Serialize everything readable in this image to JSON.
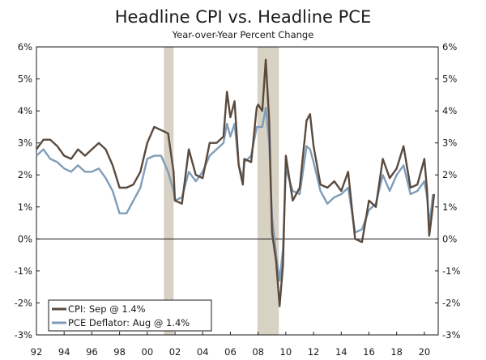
{
  "chart_data": {
    "type": "line",
    "title": "Headline CPI vs. Headline PCE",
    "subtitle": "Year-over-Year Percent Change",
    "xlim": [
      1992,
      2021
    ],
    "ylim": [
      -3,
      6
    ],
    "y_ticks": [
      6,
      5,
      4,
      3,
      2,
      1,
      0,
      -1,
      -2,
      -3
    ],
    "y_tick_labels": [
      "6%",
      "5%",
      "4%",
      "3%",
      "2%",
      "1%",
      "0%",
      "-1%",
      "-2%",
      "-3%"
    ],
    "x_ticks": [
      1992,
      1994,
      1996,
      1998,
      2000,
      2002,
      2004,
      2006,
      2008,
      2010,
      2012,
      2014,
      2016,
      2018,
      2020
    ],
    "x_tick_labels": [
      "92",
      "94",
      "96",
      "98",
      "00",
      "02",
      "04",
      "06",
      "08",
      "10",
      "12",
      "14",
      "16",
      "18",
      "20"
    ],
    "recessions": [
      [
        2001.2,
        2001.9
      ],
      [
        2007.95,
        2009.5
      ]
    ],
    "colors": {
      "cpi": "#5a4a3e",
      "pce": "#7f9db8",
      "recession": "#d8d2c4",
      "axis": "#1a1a1a"
    },
    "legend": {
      "position": "bottom-left",
      "cpi_label": "CPI: Sep @ 1.4%",
      "pce_label": "PCE Deflator: Aug @ 1.4%"
    },
    "series": [
      {
        "name": "CPI",
        "x": [
          1992,
          1992.5,
          1993,
          1993.5,
          1994,
          1994.5,
          1995,
          1995.5,
          1996,
          1996.5,
          1997,
          1997.5,
          1998,
          1998.5,
          1999,
          1999.5,
          2000,
          2000.5,
          2001,
          2001.5,
          2001.9,
          2002,
          2002.5,
          2003,
          2003.5,
          2004,
          2004.5,
          2005,
          2005.5,
          2005.75,
          2006,
          2006.3,
          2006.6,
          2006.9,
          2007,
          2007.5,
          2007.9,
          2008,
          2008.3,
          2008.55,
          2008.8,
          2009,
          2009.3,
          2009.55,
          2009.8,
          2010,
          2010.5,
          2011,
          2011.5,
          2011.75,
          2012,
          2012.5,
          2013,
          2013.5,
          2014,
          2014.5,
          2015,
          2015.5,
          2016,
          2016.5,
          2017,
          2017.5,
          2018,
          2018.5,
          2019,
          2019.5,
          2020,
          2020.2,
          2020.35,
          2020.5,
          2020.7
        ],
        "values": [
          2.8,
          3.1,
          3.1,
          2.9,
          2.6,
          2.5,
          2.8,
          2.6,
          2.8,
          3.0,
          2.8,
          2.3,
          1.6,
          1.6,
          1.7,
          2.1,
          3.0,
          3.5,
          3.4,
          3.3,
          2.1,
          1.2,
          1.1,
          2.8,
          2.0,
          1.9,
          3.0,
          3.0,
          3.2,
          4.6,
          3.8,
          4.3,
          2.3,
          1.7,
          2.5,
          2.4,
          4.1,
          4.2,
          4.0,
          5.6,
          3.7,
          0.2,
          -0.7,
          -2.1,
          -0.8,
          2.6,
          1.2,
          1.6,
          3.7,
          3.9,
          2.9,
          1.7,
          1.6,
          1.8,
          1.5,
          2.1,
          0.0,
          -0.1,
          1.2,
          1.0,
          2.5,
          1.9,
          2.2,
          2.9,
          1.6,
          1.7,
          2.5,
          1.5,
          0.1,
          0.6,
          1.4
        ]
      },
      {
        "name": "PCE Deflator",
        "x": [
          1992,
          1992.5,
          1993,
          1993.5,
          1994,
          1994.5,
          1995,
          1995.5,
          1996,
          1996.5,
          1997,
          1997.5,
          1998,
          1998.5,
          1999,
          1999.5,
          2000,
          2000.5,
          2001,
          2001.5,
          2001.9,
          2002,
          2002.5,
          2003,
          2003.5,
          2004,
          2004.5,
          2005,
          2005.5,
          2005.75,
          2006,
          2006.3,
          2006.6,
          2006.9,
          2007,
          2007.5,
          2007.9,
          2008,
          2008.3,
          2008.55,
          2008.8,
          2009,
          2009.3,
          2009.55,
          2009.8,
          2010,
          2010.5,
          2011,
          2011.5,
          2011.75,
          2012,
          2012.5,
          2013,
          2013.5,
          2014,
          2014.5,
          2015,
          2015.5,
          2016,
          2016.5,
          2017,
          2017.5,
          2018,
          2018.5,
          2019,
          2019.5,
          2020,
          2020.2,
          2020.35,
          2020.5,
          2020.62
        ],
        "values": [
          2.6,
          2.8,
          2.5,
          2.4,
          2.2,
          2.1,
          2.3,
          2.1,
          2.1,
          2.2,
          1.9,
          1.5,
          0.8,
          0.8,
          1.2,
          1.6,
          2.5,
          2.6,
          2.6,
          2.1,
          1.5,
          1.2,
          1.3,
          2.1,
          1.8,
          2.1,
          2.6,
          2.8,
          3.0,
          3.6,
          3.2,
          3.6,
          2.3,
          1.9,
          2.4,
          2.6,
          3.5,
          3.5,
          3.5,
          4.1,
          3.0,
          0.7,
          -0.5,
          -1.3,
          -0.3,
          2.2,
          1.5,
          1.4,
          2.9,
          2.8,
          2.4,
          1.5,
          1.1,
          1.3,
          1.4,
          1.6,
          0.2,
          0.3,
          0.9,
          1.1,
          2.0,
          1.5,
          2.0,
          2.3,
          1.4,
          1.5,
          1.8,
          1.3,
          0.5,
          0.9,
          1.4
        ]
      }
    ]
  }
}
